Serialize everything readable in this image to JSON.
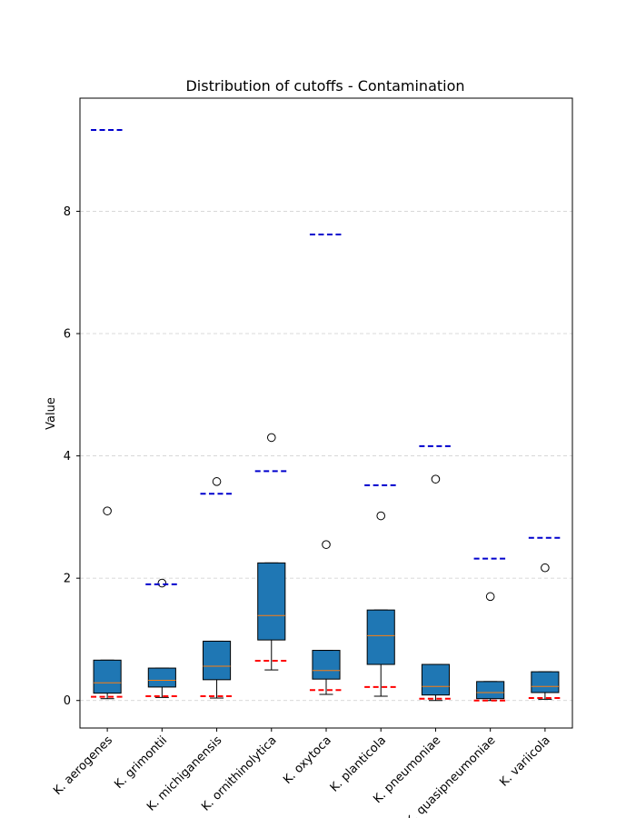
{
  "chart_data": {
    "type": "box",
    "title": "Distribution of cutoffs - Contamination",
    "xlabel": "",
    "ylabel": "Value",
    "ylim": [
      -0.45,
      9.85
    ],
    "yticks": [
      0,
      2,
      4,
      6,
      8
    ],
    "grid": "y-dashed",
    "categories": [
      "K. aerogenes",
      "K. grimontii",
      "K. michiganensis",
      "K. ornithinolytica",
      "K. oxytoca",
      "K. planticola",
      "K. pneumoniae",
      "K. quasipneumoniae",
      "K. variicola"
    ],
    "boxes": [
      {
        "whisker_low": 0.03,
        "q1": 0.12,
        "median": 0.29,
        "q3": 0.66,
        "whisker_high": 0.66,
        "outliers": [
          3.1
        ]
      },
      {
        "whisker_low": 0.05,
        "q1": 0.22,
        "median": 0.33,
        "q3": 0.53,
        "whisker_high": 0.53,
        "outliers": [
          1.92
        ]
      },
      {
        "whisker_low": 0.04,
        "q1": 0.34,
        "median": 0.56,
        "q3": 0.97,
        "whisker_high": 0.97,
        "outliers": [
          3.58
        ]
      },
      {
        "whisker_low": 0.5,
        "q1": 0.99,
        "median": 1.39,
        "q3": 2.25,
        "whisker_high": 2.25,
        "outliers": [
          4.3
        ]
      },
      {
        "whisker_low": 0.1,
        "q1": 0.35,
        "median": 0.49,
        "q3": 0.82,
        "whisker_high": 0.82,
        "outliers": [
          2.55
        ]
      },
      {
        "whisker_low": 0.07,
        "q1": 0.59,
        "median": 1.06,
        "q3": 1.48,
        "whisker_high": 1.48,
        "outliers": [
          3.02
        ]
      },
      {
        "whisker_low": 0.0,
        "q1": 0.09,
        "median": 0.23,
        "q3": 0.59,
        "whisker_high": 0.59,
        "outliers": [
          3.62
        ]
      },
      {
        "whisker_low": 0.0,
        "q1": 0.03,
        "median": 0.13,
        "q3": 0.31,
        "whisker_high": 0.31,
        "outliers": [
          1.7
        ]
      },
      {
        "whisker_low": 0.02,
        "q1": 0.13,
        "median": 0.23,
        "q3": 0.47,
        "whisker_high": 0.47,
        "outliers": [
          2.17
        ]
      }
    ],
    "upper_cutoffs": [
      9.33,
      1.9,
      3.38,
      3.75,
      7.62,
      3.52,
      4.16,
      2.32,
      2.66
    ],
    "lower_cutoffs": [
      0.06,
      0.07,
      0.07,
      0.65,
      0.17,
      0.22,
      0.03,
      0.0,
      0.04
    ],
    "colors": {
      "box_fill": "#1f77b4",
      "median": "#ff7f0e",
      "upper_cutoff": "#0000cd",
      "lower_cutoff": "#ff0000",
      "grid": "#cccccc"
    }
  }
}
